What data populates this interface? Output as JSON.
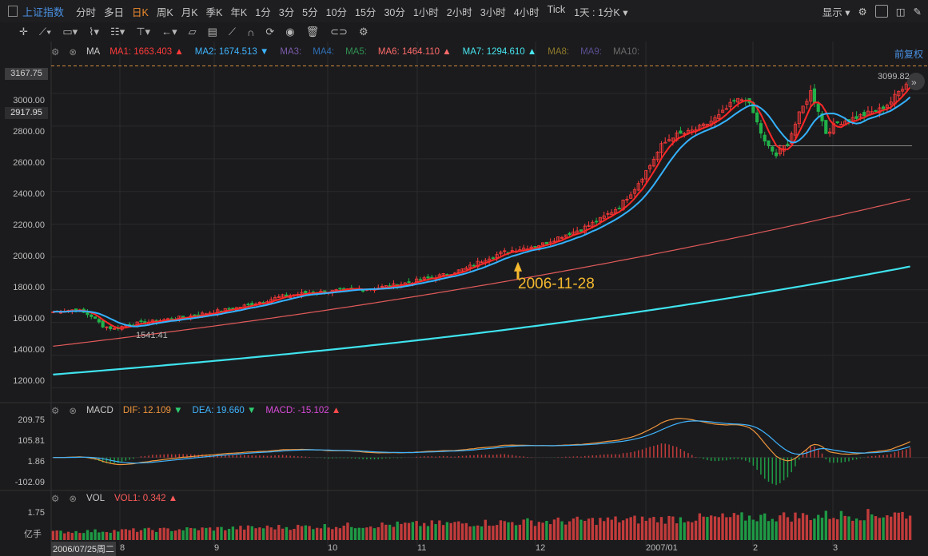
{
  "header": {
    "title": "上证指数",
    "periods": [
      "分时",
      "多日",
      "日K",
      "周K",
      "月K",
      "季K",
      "年K",
      "1分",
      "3分",
      "5分",
      "10分",
      "15分",
      "30分",
      "1小时",
      "2小时",
      "3小时",
      "4小时",
      "Tick"
    ],
    "active_period": "日K",
    "interval_select": "1天 : 1分K",
    "display_label": "显示"
  },
  "main_panel": {
    "indicator": "MA",
    "ma": [
      {
        "name": "MA1:",
        "value": "1663.403",
        "color": "#ff3b3b",
        "arrow": "▲"
      },
      {
        "name": "MA2:",
        "value": "1674.513",
        "color": "#3fb4ff",
        "arrow": "▼"
      },
      {
        "name": "MA3:",
        "value": "",
        "color": "#7a5aa8",
        "arrow": ""
      },
      {
        "name": "MA4:",
        "value": "",
        "color": "#2f6fb5",
        "arrow": ""
      },
      {
        "name": "MA5:",
        "value": "",
        "color": "#2f8f52",
        "arrow": ""
      },
      {
        "name": "MA6:",
        "value": "1464.110",
        "color": "#ff6a6a",
        "arrow": "▲"
      },
      {
        "name": "MA7:",
        "value": "1294.610",
        "color": "#47e6f0",
        "arrow": "▲"
      },
      {
        "name": "MA8:",
        "value": "",
        "color": "#8f7a2a",
        "arrow": ""
      },
      {
        "name": "MA9:",
        "value": "",
        "color": "#5a4d8f",
        "arrow": ""
      },
      {
        "name": "MA10:",
        "value": "",
        "color": "#6a6a6a",
        "arrow": ""
      }
    ],
    "adjust_label": "前复权",
    "price_tag_high": "3167.75",
    "price_tag_current": "2917.95",
    "high_label": "3099.82",
    "low_label": "1541.41",
    "annotation_date": "2006-11-28",
    "y_ticks": [
      "3000.00",
      "2800.00",
      "2600.00",
      "2400.00",
      "2200.00",
      "2000.00",
      "1800.00",
      "1600.00",
      "1400.00",
      "1200.00"
    ]
  },
  "macd_panel": {
    "name": "MACD",
    "dif_label": "DIF:",
    "dif_value": "12.109",
    "dea_label": "DEA:",
    "dea_value": "19.660",
    "macd_label": "MACD:",
    "macd_value": "-15.102",
    "y_ticks": [
      "209.75",
      "105.81",
      "1.86",
      "-102.09"
    ]
  },
  "vol_panel": {
    "name": "VOL",
    "vol_label": "VOL1:",
    "vol_value": "0.342",
    "y_ticks": [
      "1.75"
    ],
    "unit": "亿手"
  },
  "x_axis": {
    "first_date": "2006/07/25周二",
    "labels": [
      "8",
      "9",
      "10",
      "11",
      "12",
      "2007/01",
      "2",
      "3"
    ]
  },
  "chart_data": {
    "type": "candlestick",
    "y_range": [
      1130,
      3180
    ],
    "series": [
      {
        "name": "MA1",
        "color": "#ff3030"
      },
      {
        "name": "MA2",
        "color": "#35b2ff"
      },
      {
        "name": "MA6",
        "color": "#e85b5b"
      },
      {
        "name": "MA7",
        "color": "#3fe3ee"
      }
    ],
    "close_points": [
      [
        0,
        1665
      ],
      [
        6,
        1680
      ],
      [
        10,
        1640
      ],
      [
        13,
        1580
      ],
      [
        16,
        1560
      ],
      [
        20,
        1590
      ],
      [
        24,
        1600
      ],
      [
        30,
        1620
      ],
      [
        36,
        1640
      ],
      [
        42,
        1665
      ],
      [
        48,
        1690
      ],
      [
        54,
        1725
      ],
      [
        60,
        1760
      ],
      [
        66,
        1780
      ],
      [
        72,
        1790
      ],
      [
        78,
        1800
      ],
      [
        84,
        1810
      ],
      [
        90,
        1830
      ],
      [
        96,
        1860
      ],
      [
        102,
        1890
      ],
      [
        108,
        1930
      ],
      [
        113,
        1990
      ],
      [
        118,
        2030
      ],
      [
        124,
        2060
      ],
      [
        128,
        2080
      ],
      [
        133,
        2130
      ],
      [
        138,
        2170
      ],
      [
        143,
        2230
      ],
      [
        148,
        2310
      ],
      [
        152,
        2420
      ],
      [
        156,
        2560
      ],
      [
        159,
        2680
      ],
      [
        162,
        2740
      ],
      [
        166,
        2760
      ],
      [
        170,
        2800
      ],
      [
        174,
        2860
      ],
      [
        178,
        2950
      ],
      [
        181,
        2970
      ],
      [
        183,
        2880
      ],
      [
        186,
        2700
      ],
      [
        189,
        2620
      ],
      [
        192,
        2700
      ],
      [
        195,
        2870
      ],
      [
        198,
        3010
      ],
      [
        200,
        2900
      ],
      [
        202,
        2760
      ],
      [
        205,
        2820
      ],
      [
        208,
        2840
      ],
      [
        212,
        2870
      ],
      [
        216,
        2900
      ],
      [
        219,
        2950
      ],
      [
        222,
        3040
      ],
      [
        224,
        3099
      ]
    ]
  }
}
